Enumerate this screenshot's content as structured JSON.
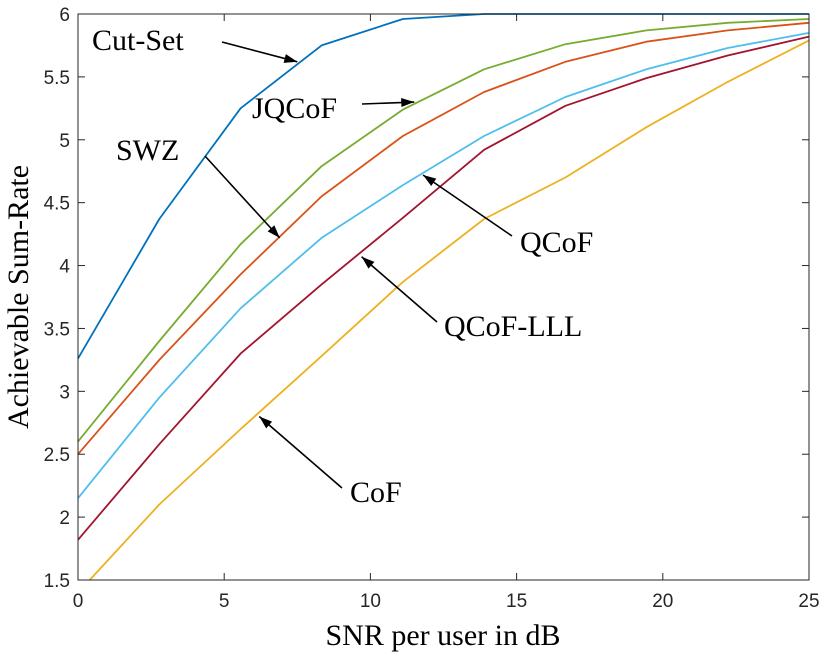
{
  "chart_data": {
    "type": "line",
    "title": "",
    "xlabel": "SNR per user in dB",
    "ylabel": "Achievable Sum-Rate",
    "xlim": [
      0,
      25
    ],
    "ylim": [
      1.5,
      6
    ],
    "xticks": [
      0,
      5,
      10,
      15,
      20,
      25
    ],
    "yticks": [
      1.5,
      2,
      2.5,
      3,
      3.5,
      4,
      4.5,
      5,
      5.5,
      6
    ],
    "xtick_labels": [
      "0",
      "5",
      "10",
      "15",
      "20",
      "25"
    ],
    "ytick_labels": [
      "1.5",
      "2",
      "2.5",
      "3",
      "3.5",
      "4",
      "4.5",
      "5",
      "5.5",
      "6"
    ],
    "grid": false,
    "series": [
      {
        "name": "Cut-Set",
        "color": "#0072BD",
        "x": [
          0,
          2.78,
          5.56,
          8.33,
          11.11,
          13.89,
          16.67,
          19.44,
          22.22,
          25
        ],
        "y": [
          3.26,
          4.37,
          5.25,
          5.75,
          5.96,
          6.0,
          6.0,
          6.0,
          6.0,
          6.0
        ]
      },
      {
        "name": "JQCoF",
        "color": "#77AC30",
        "x": [
          0,
          2.78,
          5.56,
          8.33,
          11.11,
          13.89,
          16.67,
          19.44,
          22.22,
          25
        ],
        "y": [
          2.6,
          3.4,
          4.17,
          4.79,
          5.24,
          5.56,
          5.76,
          5.87,
          5.93,
          5.96
        ]
      },
      {
        "name": "SWZ",
        "color": "#D95319",
        "x": [
          0,
          2.78,
          5.56,
          8.33,
          11.11,
          13.89,
          16.67,
          19.44,
          22.22,
          25
        ],
        "y": [
          2.5,
          3.25,
          3.93,
          4.55,
          5.03,
          5.38,
          5.62,
          5.78,
          5.87,
          5.93
        ]
      },
      {
        "name": "QCoF",
        "color": "#4DBEEE",
        "x": [
          0,
          2.78,
          5.56,
          8.33,
          11.11,
          13.89,
          16.67,
          19.44,
          22.22,
          25
        ],
        "y": [
          2.15,
          2.95,
          3.66,
          4.22,
          4.64,
          5.03,
          5.34,
          5.56,
          5.73,
          5.85
        ]
      },
      {
        "name": "QCoF-LLL",
        "color": "#A2142F",
        "x": [
          0,
          2.78,
          5.56,
          8.33,
          11.11,
          13.89,
          16.67,
          19.44,
          22.22,
          25
        ],
        "y": [
          1.82,
          2.58,
          3.3,
          3.85,
          4.38,
          4.92,
          5.27,
          5.49,
          5.67,
          5.82
        ]
      },
      {
        "name": "CoF",
        "color": "#EDB120",
        "x": [
          0.4,
          2.78,
          5.56,
          8.33,
          11.11,
          13.89,
          16.67,
          19.44,
          22.22,
          25
        ],
        "y": [
          1.5,
          2.1,
          2.7,
          3.28,
          3.87,
          4.37,
          4.7,
          5.1,
          5.46,
          5.79
        ]
      }
    ],
    "annotations": [
      {
        "text": "Cut-Set",
        "target_x": 7.5,
        "target_y": 5.62
      },
      {
        "text": "JQCoF",
        "target_x": 11.5,
        "target_y": 5.3
      },
      {
        "text": "SWZ",
        "target_x": 6.9,
        "target_y": 4.22
      },
      {
        "text": "QCoF",
        "target_x": 11.8,
        "target_y": 4.72
      },
      {
        "text": "QCoF-LLL",
        "target_x": 9.7,
        "target_y": 4.07
      },
      {
        "text": "CoF",
        "target_x": 6.2,
        "target_y": 2.8
      }
    ]
  }
}
